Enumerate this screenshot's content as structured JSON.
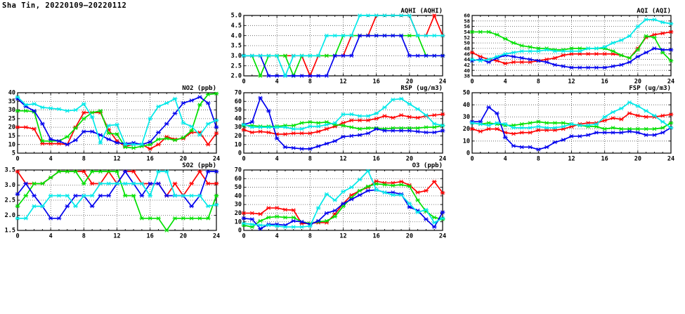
{
  "header": {
    "title": "Sha Tin, 20220109–20220112"
  },
  "chart_data": [
    {
      "id": "aqhi",
      "title": "AQHI (AQHI)",
      "type": "line",
      "x_range": [
        0,
        24
      ],
      "x_ticks": [
        0,
        4,
        8,
        12,
        16,
        20,
        24
      ],
      "ylim": [
        2.0,
        5.0
      ],
      "y_ticks": [
        2.0,
        2.5,
        3.0,
        3.5,
        4.0,
        4.5,
        5.0
      ],
      "y_decimals": 1,
      "grid": true,
      "legend": "none",
      "series": [
        {
          "name": "red",
          "color": "#ff0000",
          "values": [
            3,
            3,
            3,
            3,
            3,
            3,
            3,
            3,
            2,
            3,
            3,
            3,
            3,
            4,
            4,
            4,
            5,
            5,
            5,
            5,
            5,
            4,
            4,
            5,
            4
          ]
        },
        {
          "name": "green",
          "color": "#00e000",
          "values": [
            3,
            3,
            2,
            3,
            3,
            3,
            2,
            3,
            3,
            3,
            3,
            3,
            4,
            4,
            4,
            4,
            4,
            4,
            4,
            4,
            4,
            4,
            3,
            3,
            3
          ]
        },
        {
          "name": "blue",
          "color": "#0000ee",
          "values": [
            3,
            3,
            3,
            2,
            2,
            2,
            2,
            2,
            2,
            2,
            2,
            3,
            3,
            3,
            4,
            4,
            4,
            4,
            4,
            4,
            3,
            3,
            3,
            3,
            3
          ]
        },
        {
          "name": "cyan",
          "color": "#00e8e8",
          "values": [
            3,
            3,
            3,
            3,
            3,
            2,
            3,
            3,
            3,
            3,
            4,
            4,
            4,
            4,
            5,
            5,
            5,
            5,
            5,
            5,
            5,
            4,
            4,
            4,
            4
          ]
        }
      ]
    },
    {
      "id": "aqi",
      "title": "AQI (AQI)",
      "type": "line",
      "x_range": [
        0,
        24
      ],
      "x_ticks": [
        0,
        4,
        8,
        12,
        16,
        20,
        24
      ],
      "ylim": [
        38,
        60
      ],
      "y_ticks": [
        38,
        40,
        42,
        44,
        46,
        48,
        50,
        52,
        54,
        56,
        58,
        60
      ],
      "y_decimals": 0,
      "grid": true,
      "legend": "none",
      "series": [
        {
          "name": "red",
          "color": "#ff0000",
          "values": [
            46.5,
            45,
            44,
            43.5,
            42.5,
            43,
            43,
            43,
            43.5,
            44,
            44.5,
            45.5,
            46,
            46,
            46,
            46,
            46,
            46,
            45.5,
            44.5,
            48,
            52,
            53,
            53.5,
            54
          ]
        },
        {
          "name": "green",
          "color": "#00e000",
          "values": [
            54,
            54,
            54,
            53,
            51.5,
            50,
            49,
            48.5,
            48,
            48,
            47.5,
            47.5,
            48,
            48,
            48,
            48,
            48,
            47,
            45.5,
            44.5,
            47.5,
            52.5,
            52,
            46.5,
            43.5
          ]
        },
        {
          "name": "blue",
          "color": "#0000ee",
          "values": [
            43.5,
            44,
            43,
            44.5,
            45.5,
            45,
            44.5,
            44,
            43.5,
            43,
            42,
            41.5,
            41,
            41,
            41,
            41,
            41,
            41.5,
            42,
            43,
            45,
            46.5,
            48,
            47.5,
            47.5
          ]
        },
        {
          "name": "cyan",
          "color": "#00e8e8",
          "values": [
            44,
            43.5,
            44,
            45,
            46,
            46.5,
            47,
            47,
            47,
            47.5,
            47,
            47,
            47,
            47,
            48,
            48,
            48.5,
            50,
            51,
            52.5,
            56,
            58.5,
            58.5,
            57.5,
            57
          ]
        }
      ]
    },
    {
      "id": "no2",
      "title": "NO2 (ppb)",
      "type": "line",
      "x_range": [
        0,
        24
      ],
      "x_ticks": [
        0,
        4,
        8,
        12,
        16,
        20,
        24
      ],
      "ylim": [
        5,
        40
      ],
      "y_ticks": [
        5,
        10,
        15,
        20,
        25,
        30,
        35,
        40
      ],
      "y_decimals": 0,
      "grid": true,
      "legend": "none",
      "series": [
        {
          "name": "red",
          "color": "#ff0000",
          "values": [
            20,
            20,
            19,
            10.5,
            10.5,
            10.5,
            10,
            20,
            28.5,
            28.5,
            28.5,
            18.5,
            12,
            9,
            10,
            10,
            7.5,
            10,
            14.5,
            13,
            13.5,
            17,
            17,
            10,
            16.5
          ]
        },
        {
          "name": "green",
          "color": "#00e000",
          "values": [
            29.5,
            29.5,
            29,
            12,
            12,
            12,
            14.5,
            19.5,
            25,
            28.5,
            29.5,
            16.5,
            16,
            8.5,
            8,
            9,
            10,
            13,
            13.5,
            12.5,
            14,
            18,
            33,
            39,
            39.5
          ]
        },
        {
          "name": "blue",
          "color": "#0000ee",
          "values": [
            36.5,
            32,
            29.5,
            22,
            13,
            12,
            10,
            12.5,
            17.5,
            17.5,
            15.5,
            13,
            11,
            10.5,
            11,
            10,
            11.5,
            17,
            22,
            28,
            34,
            35.5,
            37.5,
            34,
            20
          ]
        },
        {
          "name": "cyan",
          "color": "#00e8e8",
          "values": [
            37.5,
            33,
            33.5,
            31.5,
            31,
            30.5,
            29.5,
            30,
            33.5,
            26,
            11,
            21,
            21.5,
            10,
            10,
            10,
            25,
            32,
            34,
            36.5,
            22.5,
            20.5,
            15.5,
            22,
            24
          ]
        }
      ]
    },
    {
      "id": "rsp",
      "title": "RSP (ug/m3)",
      "type": "line",
      "x_range": [
        0,
        24
      ],
      "x_ticks": [
        0,
        4,
        8,
        12,
        16,
        20,
        24
      ],
      "ylim": [
        0,
        70
      ],
      "y_ticks": [
        0,
        10,
        20,
        30,
        40,
        50,
        60,
        70
      ],
      "y_decimals": 0,
      "grid": true,
      "legend": "none",
      "series": [
        {
          "name": "red",
          "color": "#ff0000",
          "values": [
            27,
            24,
            25,
            24,
            22,
            22,
            23,
            23,
            23,
            25,
            28,
            31,
            35,
            38,
            38,
            38,
            40,
            43,
            41,
            44,
            42,
            41,
            43,
            44,
            45
          ]
        },
        {
          "name": "green",
          "color": "#00e000",
          "values": [
            32,
            32,
            31,
            31,
            31,
            32,
            32,
            35,
            36,
            35,
            36,
            33,
            32,
            30,
            28,
            29,
            29,
            28,
            29,
            29,
            29,
            29,
            30,
            30,
            32
          ]
        },
        {
          "name": "blue",
          "color": "#0000ee",
          "values": [
            33,
            36,
            64,
            49,
            17,
            7,
            6,
            5,
            5,
            8,
            11,
            14,
            19,
            20,
            21,
            23,
            28,
            26,
            26,
            26,
            26,
            25,
            24,
            24,
            26
          ]
        },
        {
          "name": "cyan",
          "color": "#00e8e8",
          "values": [
            33,
            30,
            30,
            30,
            30,
            30,
            28,
            28,
            31,
            31,
            33,
            35,
            45,
            45,
            43,
            43,
            46,
            53,
            62,
            63,
            57,
            51,
            44,
            34,
            32
          ]
        }
      ]
    },
    {
      "id": "fsp",
      "title": "FSP (ug/m3)",
      "type": "line",
      "x_range": [
        0,
        24
      ],
      "x_ticks": [
        0,
        4,
        8,
        12,
        16,
        20,
        24
      ],
      "ylim": [
        0,
        50
      ],
      "y_ticks": [
        0,
        10,
        20,
        30,
        40,
        50
      ],
      "y_decimals": 0,
      "grid": true,
      "legend": "none",
      "series": [
        {
          "name": "red",
          "color": "#ff0000",
          "values": [
            20,
            18,
            20,
            20,
            17,
            16,
            17,
            17,
            19,
            19,
            19,
            20,
            22,
            24,
            25,
            25,
            27,
            29,
            28,
            33,
            31,
            30,
            30,
            31,
            32
          ]
        },
        {
          "name": "green",
          "color": "#00e000",
          "values": [
            25,
            24,
            25,
            24,
            23,
            23,
            24,
            25,
            26,
            25,
            25,
            25,
            24,
            23,
            22,
            22,
            20,
            21,
            20,
            20,
            20,
            20,
            20,
            21,
            25
          ]
        },
        {
          "name": "blue",
          "color": "#0000ee",
          "values": [
            26,
            26,
            38,
            33,
            13,
            6,
            5,
            5,
            3,
            5,
            9,
            11,
            14,
            14,
            15,
            17,
            17,
            17,
            17,
            18,
            17,
            15,
            15,
            17,
            21
          ]
        },
        {
          "name": "cyan",
          "color": "#00e8e8",
          "values": [
            25,
            24,
            23,
            25,
            24,
            21,
            21,
            21,
            22,
            21,
            21,
            22,
            24,
            23,
            23,
            24,
            30,
            34,
            37,
            42,
            39,
            35,
            31,
            26,
            21
          ]
        }
      ]
    },
    {
      "id": "so2",
      "title": "SO2 (ppb)",
      "type": "line",
      "x_range": [
        0,
        24
      ],
      "x_ticks": [
        0,
        4,
        8,
        12,
        16,
        20,
        24
      ],
      "ylim": [
        1.5,
        3.5
      ],
      "y_ticks": [
        1.5,
        2.0,
        2.5,
        3.0,
        3.5
      ],
      "y_decimals": 1,
      "grid": true,
      "legend": "none",
      "series": [
        {
          "name": "red",
          "color": "#ff0000",
          "values": [
            3.45,
            3.05,
            3.05,
            3.05,
            3.25,
            3.45,
            3.45,
            3.45,
            3.45,
            3.05,
            3.05,
            3.45,
            3.05,
            3.45,
            3.45,
            3.05,
            3.05,
            3.05,
            2.65,
            3.05,
            2.65,
            3.05,
            3.45,
            3.05,
            3.05
          ]
        },
        {
          "name": "green",
          "color": "#00e000",
          "values": [
            2.3,
            2.65,
            3.05,
            3.05,
            3.25,
            3.45,
            3.45,
            3.45,
            3.05,
            3.45,
            3.45,
            3.45,
            3.45,
            2.65,
            2.65,
            1.9,
            1.9,
            1.9,
            1.5,
            1.9,
            1.9,
            1.9,
            1.9,
            1.9,
            2.65
          ]
        },
        {
          "name": "blue",
          "color": "#0000ee",
          "values": [
            2.7,
            3.05,
            2.65,
            2.3,
            1.9,
            1.9,
            2.3,
            2.65,
            2.65,
            2.3,
            2.65,
            2.65,
            3.05,
            3.45,
            3.05,
            2.65,
            3.05,
            3.05,
            2.65,
            2.65,
            2.65,
            2.3,
            2.65,
            3.45,
            3.45
          ]
        },
        {
          "name": "cyan",
          "color": "#00e8e8",
          "values": [
            1.9,
            1.9,
            2.3,
            2.3,
            2.65,
            2.65,
            2.65,
            2.3,
            2.65,
            2.65,
            3.05,
            3.05,
            3.05,
            3.05,
            3.05,
            3.05,
            2.65,
            3.45,
            3.45,
            2.65,
            2.65,
            2.65,
            2.65,
            2.3,
            2.35
          ]
        }
      ]
    },
    {
      "id": "o3",
      "title": "O3 (ppb)",
      "type": "line",
      "x_range": [
        0,
        24
      ],
      "x_ticks": [
        0,
        4,
        8,
        12,
        16,
        20,
        24
      ],
      "ylim": [
        0,
        70
      ],
      "y_ticks": [
        0,
        10,
        20,
        30,
        40,
        50,
        60,
        70
      ],
      "y_decimals": 0,
      "grid": true,
      "legend": "none",
      "series": [
        {
          "name": "red",
          "color": "#ff0000",
          "values": [
            20,
            20,
            19,
            26,
            26,
            24,
            23.5,
            8,
            8,
            9,
            9,
            19,
            31,
            41,
            46,
            50,
            57,
            55,
            55,
            56.5,
            52.5,
            44,
            46,
            56.5,
            43.5
          ]
        },
        {
          "name": "green",
          "color": "#00e000",
          "values": [
            6,
            4,
            11,
            15,
            16,
            15,
            15,
            10,
            8,
            10,
            11,
            16,
            28,
            38,
            46,
            51,
            54,
            53,
            52,
            53,
            51,
            35,
            22,
            15,
            13
          ]
        },
        {
          "name": "blue",
          "color": "#0000ee",
          "values": [
            14,
            13,
            2,
            7,
            7,
            6,
            11,
            10,
            7,
            11,
            20,
            23,
            31,
            36,
            41,
            46,
            47,
            44,
            44,
            42,
            27,
            23,
            13,
            4,
            21
          ]
        },
        {
          "name": "cyan",
          "color": "#00e8e8",
          "values": [
            8,
            7,
            6,
            6,
            5,
            4,
            4,
            4,
            5,
            26,
            42,
            35,
            45,
            50,
            59,
            69,
            47,
            44,
            41,
            41,
            31,
            21,
            24,
            9,
            14
          ]
        }
      ]
    }
  ]
}
